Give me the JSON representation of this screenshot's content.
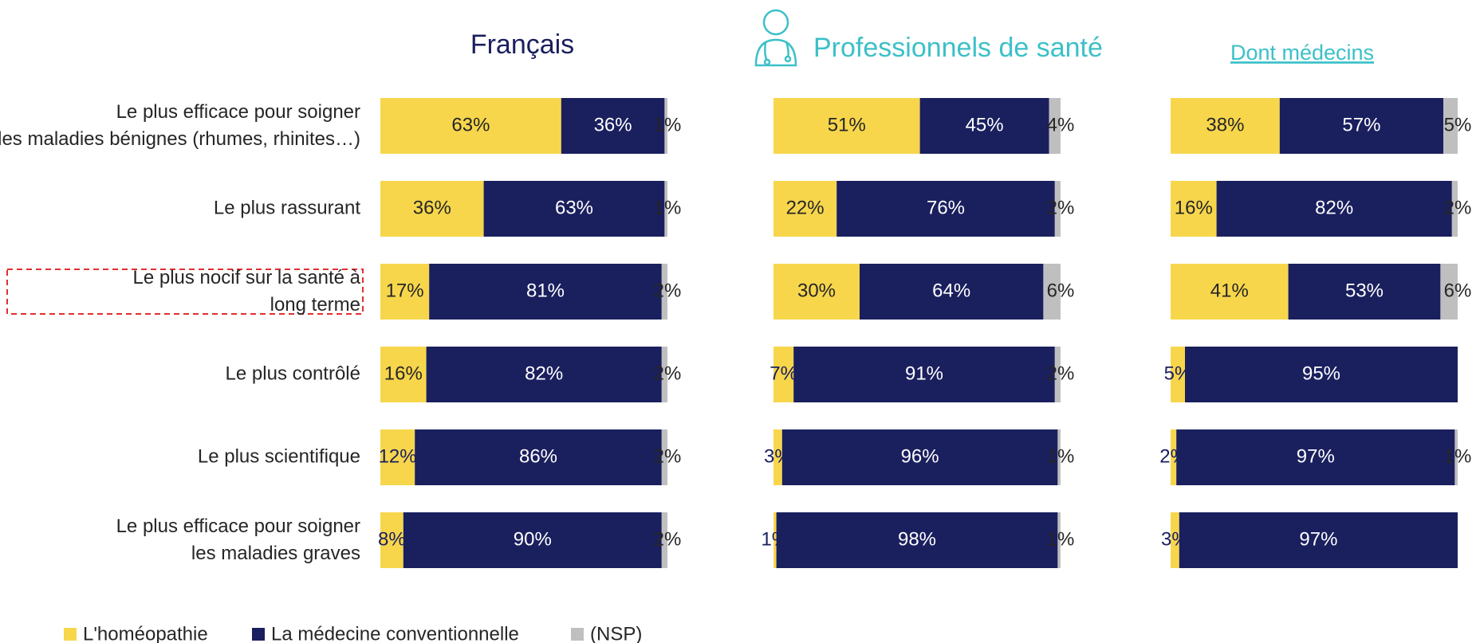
{
  "chart_data": [
    {
      "type": "stacked-bar",
      "title": "Français",
      "title_color": "#1a1f5e",
      "categories": [
        "Le plus efficace pour soigner les maladies bénignes (rhumes, rhinites…)",
        "Le plus rassurant",
        "Le plus nocif sur la santé à long terme",
        "Le plus contrôlé",
        "Le plus scientifique",
        "Le plus efficace pour soigner les maladies graves"
      ],
      "series": [
        {
          "name": "L'homéopathie",
          "color": "#f7d64c",
          "values": [
            63,
            36,
            17,
            16,
            12,
            8
          ],
          "value_labels": [
            "63%",
            "36%",
            "17%",
            "16%",
            "12%",
            "8%"
          ]
        },
        {
          "name": "La médecine conventionnelle",
          "color": "#1a1f5e",
          "values": [
            36,
            63,
            81,
            82,
            86,
            90
          ],
          "value_labels": [
            "36%",
            "63%",
            "81%",
            "82%",
            "86%",
            "90%"
          ]
        },
        {
          "name": "(NSP)",
          "color": "#bfbfbf",
          "values": [
            1,
            1,
            2,
            2,
            2,
            2
          ],
          "value_labels": [
            "1%",
            "1%",
            "2%",
            "2%",
            "2%",
            "2%"
          ]
        }
      ]
    },
    {
      "type": "stacked-bar",
      "title": "Professionnels de santé",
      "title_color": "#3cc0c8",
      "series": [
        {
          "color": "#f7d64c",
          "values": [
            51,
            22,
            30,
            7,
            3,
            1
          ],
          "value_labels": [
            "51%",
            "22%",
            "30%",
            "7%",
            "3%",
            "1%"
          ]
        },
        {
          "color": "#1a1f5e",
          "values": [
            45,
            76,
            64,
            91,
            96,
            98
          ],
          "value_labels": [
            "45%",
            "76%",
            "64%",
            "91%",
            "96%",
            "98%"
          ]
        },
        {
          "color": "#bfbfbf",
          "values": [
            4,
            2,
            6,
            2,
            1,
            1
          ],
          "value_labels": [
            "4%",
            "2%",
            "6%",
            "2%",
            "1%",
            "1%"
          ]
        }
      ]
    },
    {
      "type": "stacked-bar",
      "title": "Dont médecins",
      "title_color": "#3cc0c8",
      "series": [
        {
          "color": "#f7d64c",
          "values": [
            38,
            16,
            41,
            5,
            2,
            3
          ],
          "value_labels": [
            "38%",
            "16%",
            "41%",
            "5%",
            "2%",
            "3%"
          ]
        },
        {
          "color": "#1a1f5e",
          "values": [
            57,
            82,
            53,
            95,
            97,
            97
          ],
          "value_labels": [
            "57%",
            "82%",
            "53%",
            "95%",
            "97%",
            "97%"
          ]
        },
        {
          "color": "#bfbfbf",
          "values": [
            5,
            2,
            6,
            null,
            1,
            null
          ],
          "value_labels": [
            "5%",
            "2%",
            "6%",
            null,
            "1%",
            null
          ]
        }
      ]
    }
  ]
}
